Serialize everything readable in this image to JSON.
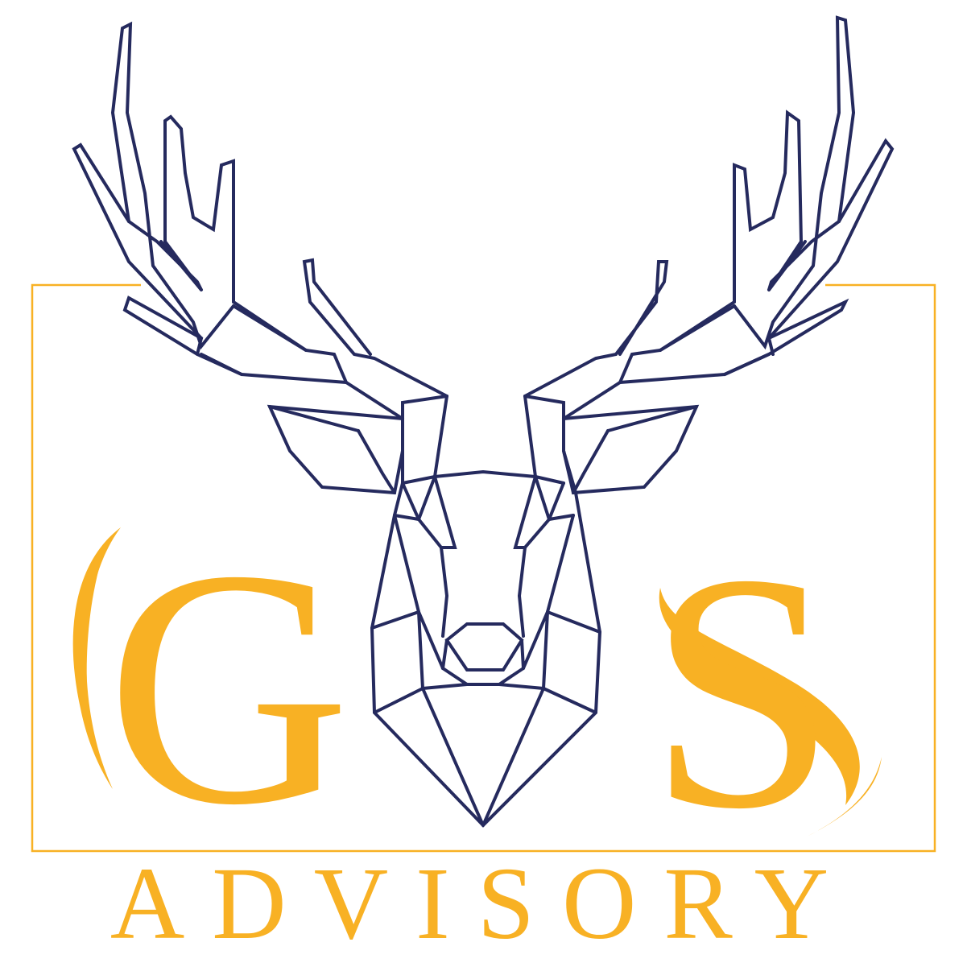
{
  "brand": {
    "letter_left": "G",
    "letter_right": "S",
    "tagline": "ADVISORY"
  },
  "colors": {
    "gold": "#F8B124",
    "navy": "#252A5E",
    "background": "#FFFFFF"
  },
  "icons": {
    "emblem": "deer-head-icon"
  }
}
